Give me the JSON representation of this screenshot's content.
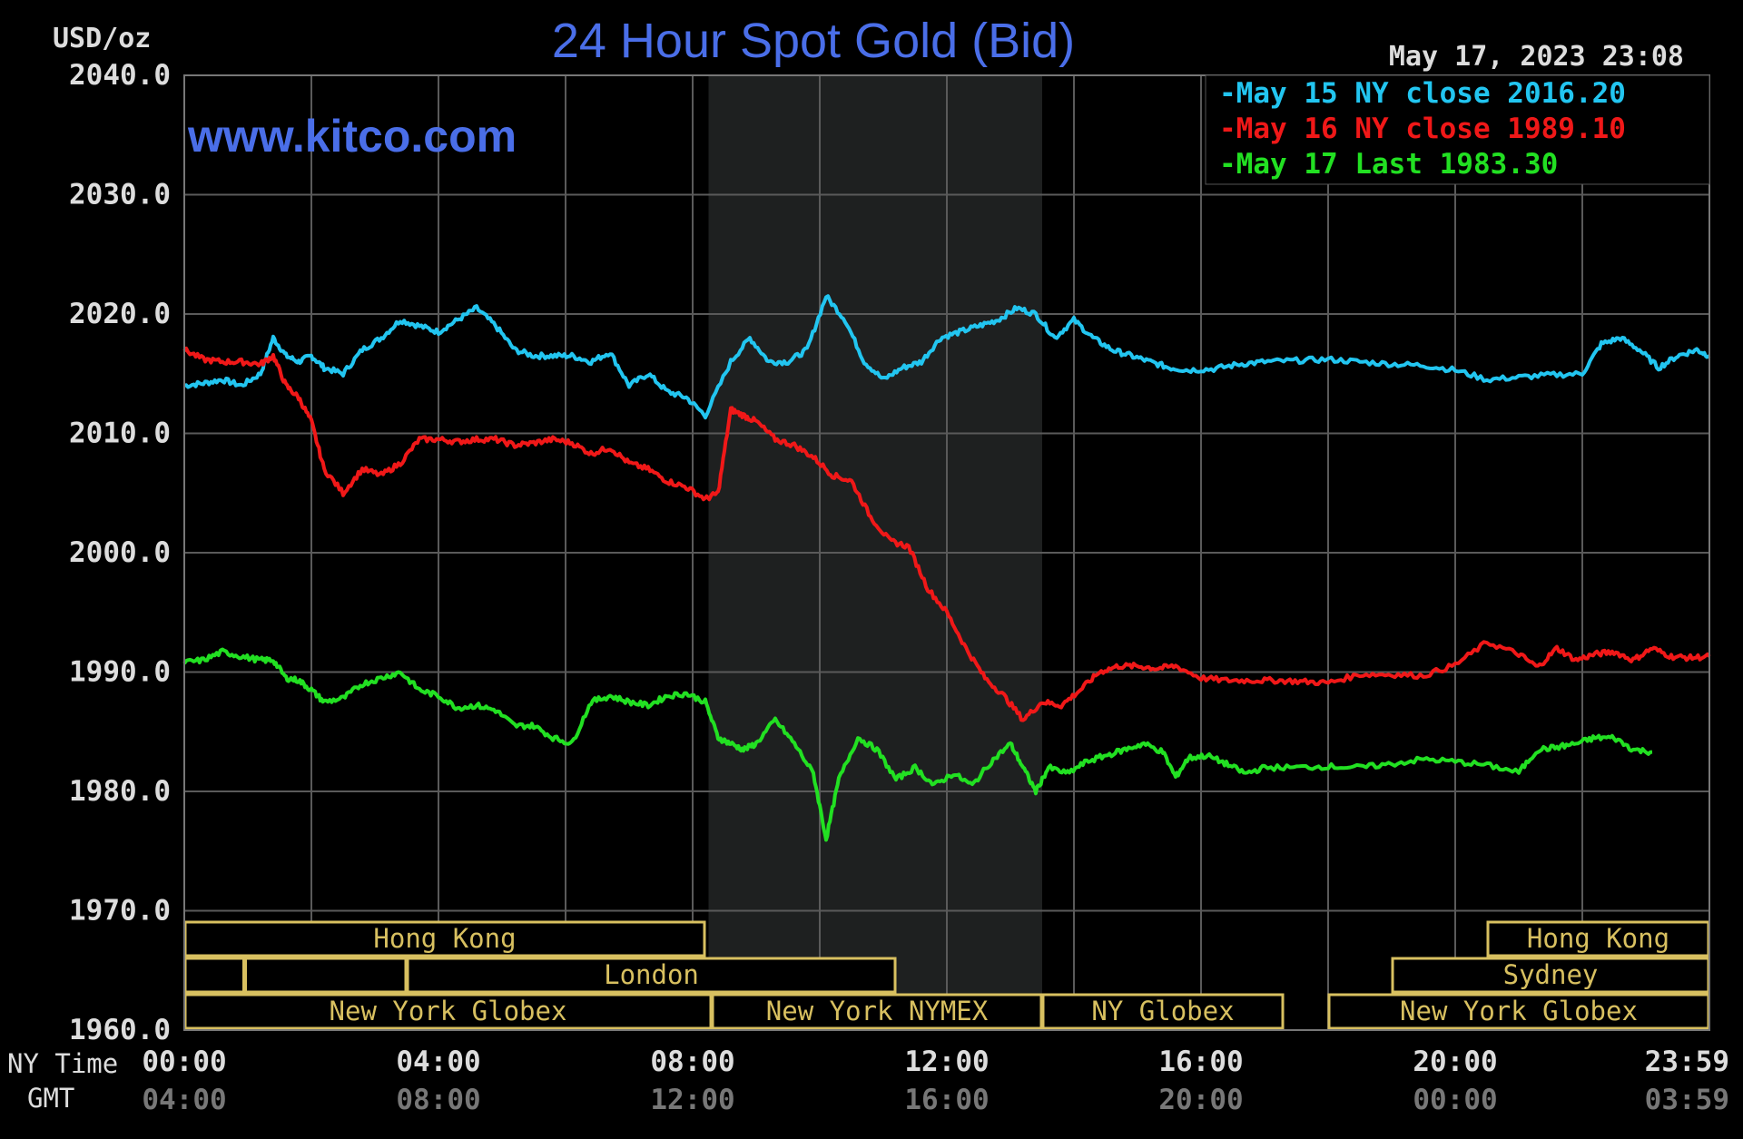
{
  "header": {
    "units_label": "USD/oz",
    "title": "24 Hour Spot Gold (Bid)",
    "timestamp": "May 17, 2023 23:08",
    "watermark": "www.kitco.com"
  },
  "colors": {
    "background": "#000000",
    "plot_background": "#000000",
    "grid": "#5a5a5a",
    "shaded_region": "#1e2020",
    "title": "#4a6ee8",
    "axis_text": "#dddddd",
    "gmt_text": "#777777",
    "market_box": "#d8c060",
    "series_may15": "#22c5f0",
    "series_may16": "#f01818",
    "series_may17": "#22e022"
  },
  "legend": {
    "placement": "top-right",
    "entries": [
      {
        "marker": "-",
        "text": "May 15 NY close 2016.20",
        "color": "#22c5f0"
      },
      {
        "marker": "-",
        "text": "May 16 NY close 1989.10",
        "color": "#f01818"
      },
      {
        "marker": "-",
        "text": "May 17 Last 1983.30",
        "color": "#22e022"
      }
    ]
  },
  "axis_labels": {
    "ny_time": "NY Time",
    "gmt": "GMT"
  },
  "markets": {
    "row1": [
      {
        "name": "Hong Kong",
        "start": 0,
        "end": 8.2
      },
      {
        "name": "Hong Kong",
        "start": 20.5,
        "end": 24
      }
    ],
    "row2": [
      {
        "name": "",
        "start": 0,
        "end": 0.95
      },
      {
        "name": "",
        "start": 0.95,
        "end": 3.5
      },
      {
        "name": "London",
        "start": 3.5,
        "end": 11.2
      },
      {
        "name": "Sydney",
        "start": 19.0,
        "end": 24
      }
    ],
    "row3": [
      {
        "name": "New York Globex",
        "start": 0,
        "end": 8.3
      },
      {
        "name": "New York NYMEX",
        "start": 8.3,
        "end": 13.5
      },
      {
        "name": "NY Globex",
        "start": 13.5,
        "end": 17.3
      },
      {
        "name": "New York Globex",
        "start": 18.0,
        "end": 24
      }
    ]
  },
  "chart_data": {
    "type": "line",
    "title": "24 Hour Spot Gold (Bid)",
    "ylabel": "USD/oz",
    "xlabel": "NY Time",
    "xlim": [
      0,
      24
    ],
    "ylim": [
      1960,
      2040
    ],
    "grid": true,
    "shaded_region": [
      8.25,
      13.5
    ],
    "y_ticks": [
      "2040.0",
      "2030.0",
      "2020.0",
      "2010.0",
      "2000.0",
      "1990.0",
      "1980.0",
      "1970.0",
      "1960.0"
    ],
    "y_tick_values": [
      2040,
      2030,
      2020,
      2010,
      2000,
      1990,
      1980,
      1970,
      1960
    ],
    "x_ticks": [
      {
        "value": 0,
        "ny": "00:00",
        "gmt": "04:00"
      },
      {
        "value": 4,
        "ny": "04:00",
        "gmt": "08:00"
      },
      {
        "value": 8,
        "ny": "08:00",
        "gmt": "12:00"
      },
      {
        "value": 12,
        "ny": "12:00",
        "gmt": "16:00"
      },
      {
        "value": 16,
        "ny": "16:00",
        "gmt": "20:00"
      },
      {
        "value": 20,
        "ny": "20:00",
        "gmt": "00:00"
      },
      {
        "value": 24,
        "ny": "23:59",
        "gmt": "03:59"
      }
    ],
    "series": [
      {
        "name": "May 15 NY close 2016.20",
        "color": "#22c5f0",
        "x": [
          0,
          0.3,
          0.6,
          0.9,
          1.2,
          1.4,
          1.6,
          1.8,
          2.0,
          2.2,
          2.5,
          2.8,
          3.1,
          3.4,
          3.7,
          4.0,
          4.3,
          4.6,
          4.9,
          5.2,
          5.5,
          5.8,
          6.1,
          6.4,
          6.7,
          7.0,
          7.3,
          7.6,
          7.9,
          8.2,
          8.6,
          8.9,
          9.2,
          9.5,
          9.8,
          10.1,
          10.4,
          10.7,
          11.0,
          11.3,
          11.6,
          11.9,
          12.2,
          12.5,
          12.8,
          13.1,
          13.4,
          13.7,
          14.0,
          14.3,
          14.6,
          14.9,
          15.2,
          15.5,
          15.8,
          16.2,
          16.6,
          17.0,
          17.5,
          18.0,
          18.5,
          19.0,
          19.5,
          20.0,
          20.5,
          21.0,
          21.5,
          22.0,
          22.3,
          22.6,
          22.9,
          23.2,
          23.5,
          23.8,
          24.0
        ],
        "y": [
          2014,
          2014.2,
          2014.5,
          2014,
          2015,
          2018,
          2016.5,
          2016,
          2016.5,
          2015.5,
          2015,
          2017,
          2018,
          2019.5,
          2019,
          2018.5,
          2019.5,
          2020.5,
          2019,
          2017,
          2016.5,
          2016.5,
          2016.5,
          2016,
          2016.8,
          2014,
          2015,
          2013.5,
          2013,
          2011.5,
          2016,
          2018,
          2016,
          2016,
          2017,
          2021.5,
          2019.5,
          2016,
          2014.5,
          2015.5,
          2016,
          2018,
          2018.5,
          2019,
          2019.5,
          2020.5,
          2020,
          2018,
          2019.5,
          2018,
          2017,
          2016.5,
          2016,
          2015.5,
          2015.3,
          2015.4,
          2015.8,
          2016,
          2016.1,
          2016.2,
          2016,
          2015.8,
          2015.7,
          2015.3,
          2014.5,
          2014.7,
          2014.9,
          2015,
          2017.5,
          2018,
          2017,
          2015.5,
          2016.5,
          2017,
          2016.5
        ]
      },
      {
        "name": "May 16 NY close 1989.10",
        "color": "#f01818",
        "x": [
          0,
          0.3,
          0.6,
          0.9,
          1.2,
          1.4,
          1.6,
          1.8,
          2.0,
          2.2,
          2.5,
          2.8,
          3.1,
          3.4,
          3.7,
          4.0,
          4.3,
          4.6,
          4.9,
          5.2,
          5.5,
          5.8,
          6.1,
          6.4,
          6.7,
          7.0,
          7.3,
          7.6,
          7.9,
          8.2,
          8.4,
          8.6,
          8.8,
          9.0,
          9.3,
          9.6,
          9.9,
          10.2,
          10.5,
          10.8,
          11.1,
          11.4,
          11.7,
          12.0,
          12.3,
          12.6,
          12.9,
          13.2,
          13.5,
          13.8,
          14.1,
          14.4,
          14.7,
          15.0,
          15.3,
          15.6,
          16.0,
          16.4,
          16.8,
          17.2,
          17.6,
          18.0,
          18.5,
          19.0,
          19.5,
          20.0,
          20.5,
          21.0,
          21.3,
          21.6,
          21.9,
          22.2,
          22.5,
          22.8,
          23.1,
          23.4,
          23.7,
          24.0
        ],
        "y": [
          2017,
          2016.2,
          2016,
          2016,
          2015.8,
          2016.5,
          2014,
          2013,
          2011,
          2007,
          2005,
          2007,
          2006.5,
          2007.5,
          2009.5,
          2009.5,
          2009.3,
          2009.5,
          2009.5,
          2009,
          2009.2,
          2009.5,
          2009.2,
          2008.3,
          2008.8,
          2007.5,
          2007,
          2006,
          2005.5,
          2004.5,
          2005,
          2012,
          2011.5,
          2011,
          2009.5,
          2009,
          2008,
          2006.5,
          2006,
          2003,
          2001,
          2000.5,
          1997,
          1995,
          1992,
          1989.5,
          1988,
          1986,
          1987.5,
          1987.2,
          1988.5,
          1990,
          1990.5,
          1990.5,
          1990.3,
          1990.5,
          1989.5,
          1989.3,
          1989.3,
          1989.3,
          1989.2,
          1989.1,
          1989.8,
          1989.8,
          1989.7,
          1990.6,
          1992.5,
          1991.5,
          1990.4,
          1992,
          1991,
          1991.5,
          1991.7,
          1991,
          1992,
          1991.3,
          1991.2,
          1991.3
        ]
      },
      {
        "name": "May 17 Last 1983.30",
        "color": "#22e022",
        "x": [
          0,
          0.3,
          0.6,
          0.9,
          1.2,
          1.4,
          1.6,
          1.8,
          2.0,
          2.2,
          2.5,
          2.8,
          3.1,
          3.4,
          3.7,
          4.0,
          4.3,
          4.6,
          4.9,
          5.2,
          5.5,
          5.8,
          6.1,
          6.4,
          6.7,
          7.0,
          7.3,
          7.6,
          7.9,
          8.2,
          8.4,
          8.6,
          8.8,
          9.0,
          9.3,
          9.6,
          9.9,
          10.1,
          10.3,
          10.6,
          10.9,
          11.2,
          11.5,
          11.8,
          12.1,
          12.4,
          12.7,
          13.0,
          13.2,
          13.4,
          13.6,
          13.9,
          14.2,
          14.5,
          14.8,
          15.1,
          15.4,
          15.6,
          15.8,
          16.1,
          16.4,
          16.7,
          17.0,
          17.5,
          18.0,
          18.5,
          19.0,
          19.5,
          20.0,
          20.5,
          21.0,
          21.3,
          21.6,
          21.9,
          22.2,
          22.5,
          22.8,
          23.1
        ],
        "y": [
          1990.8,
          1991,
          1991.7,
          1991.3,
          1991,
          1991,
          1989.5,
          1989.3,
          1988.5,
          1987.5,
          1987.8,
          1989,
          1989.5,
          1990,
          1988.5,
          1988,
          1987,
          1987.2,
          1986.8,
          1985.5,
          1985.5,
          1984.5,
          1984,
          1987.5,
          1988,
          1987.5,
          1987.2,
          1988,
          1988.2,
          1987.5,
          1984.5,
          1984,
          1983.5,
          1984,
          1986,
          1984,
          1981.5,
          1976,
          1981,
          1984.5,
          1983.5,
          1981,
          1982,
          1980.5,
          1981.5,
          1980.5,
          1982.5,
          1984,
          1982,
          1980,
          1982,
          1981.5,
          1982.5,
          1983,
          1983.5,
          1984,
          1983.3,
          1981.2,
          1982.8,
          1983,
          1982.3,
          1981.5,
          1982,
          1982,
          1982.1,
          1982,
          1982.3,
          1982.7,
          1982.5,
          1982.2,
          1981.6,
          1983.5,
          1983.7,
          1984,
          1984.5,
          1984.5,
          1983.5,
          1983.3
        ]
      }
    ]
  }
}
